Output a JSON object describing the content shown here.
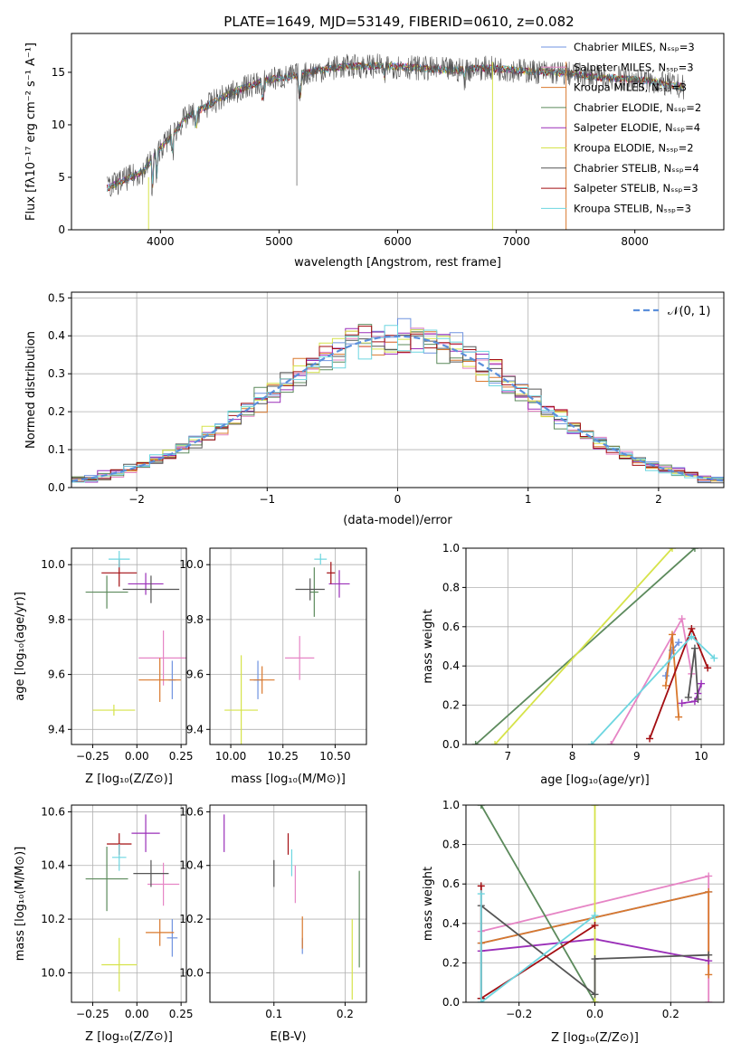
{
  "colors": {
    "chabrier_miles": "#6f93e0",
    "salpeter_miles": "#e685c5",
    "kroupa_miles": "#d9782d",
    "chabrier_elodie": "#5c8a5c",
    "salpeter_elodie": "#9a2fb8",
    "kroupa_elodie": "#d6e34a",
    "chabrier_stelib": "#555555",
    "salpeter_stelib": "#a30e12",
    "kroupa_stelib": "#6dd6e0",
    "normal_curve": "#5b8fdb",
    "grid": "#b0b0b0"
  },
  "chart_data": [
    {
      "id": "spectrum",
      "type": "line",
      "title": "PLATE=1649, MJD=53149, FIBERID=0610, z=0.082",
      "xlabel": "wavelength [Angstrom, rest frame]",
      "ylabel": "Flux [fλ10⁻¹⁷ erg cm⁻² s⁻¹ A⁻¹]",
      "xlim": [
        3250,
        8750
      ],
      "ylim": [
        0,
        18.7
      ],
      "xticks": [
        "4000",
        "5000",
        "6000",
        "7000",
        "8000"
      ],
      "yticks": [
        "0",
        "5",
        "10",
        "15"
      ],
      "grid": false,
      "legend_position": "right",
      "continuum": {
        "x": [
          3550,
          3700,
          3850,
          4000,
          4100,
          4200,
          4300,
          4500,
          4700,
          4900,
          5100,
          5300,
          5500,
          5700,
          5900,
          6100,
          6300,
          6500,
          6700,
          6900,
          7100,
          7300,
          7500,
          7700,
          7900,
          8100,
          8300,
          8400
        ],
        "y": [
          4.0,
          4.8,
          5.5,
          7.8,
          9.0,
          10.5,
          11.2,
          12.5,
          13.5,
          14.3,
          14.6,
          15.1,
          15.5,
          15.6,
          15.6,
          15.5,
          15.3,
          15.2,
          15.4,
          15.3,
          15.1,
          15.0,
          14.8,
          14.5,
          14.4,
          14.2,
          13.8,
          13.6
        ]
      },
      "series": [
        {
          "name": "Chabrier MILES, Nₛₛₚ=3",
          "color_key": "chabrier_miles"
        },
        {
          "name": "Salpeter MILES, Nₛₛₚ=3",
          "color_key": "salpeter_miles"
        },
        {
          "name": "Kroupa MILES, Nₛₛₚ=3",
          "color_key": "kroupa_miles"
        },
        {
          "name": "Chabrier ELODIE, Nₛₛₚ=2",
          "color_key": "chabrier_elodie"
        },
        {
          "name": "Salpeter ELODIE, Nₛₛₚ=4",
          "color_key": "salpeter_elodie"
        },
        {
          "name": "Kroupa ELODIE, Nₛₛₚ=2",
          "color_key": "kroupa_elodie"
        },
        {
          "name": "Chabrier STELIB, Nₛₛₚ=4",
          "color_key": "chabrier_stelib"
        },
        {
          "name": "Salpeter STELIB, Nₛₛₚ=3",
          "color_key": "salpeter_stelib"
        },
        {
          "name": "Kroupa STELIB, Nₛₛₚ=3",
          "color_key": "kroupa_stelib"
        }
      ]
    },
    {
      "id": "residuals",
      "type": "line",
      "xlabel": "(data-model)/error",
      "ylabel": "Normed distribution",
      "xlim": [
        -2.5,
        2.5
      ],
      "ylim": [
        0,
        0.515
      ],
      "xticks": [
        "−2",
        "−1",
        "0",
        "1",
        "2"
      ],
      "yticks": [
        "0.0",
        "0.1",
        "0.2",
        "0.3",
        "0.4",
        "0.5"
      ],
      "grid": true,
      "legend_position": "top-right",
      "legend": [
        "𝒩(0, 1)"
      ],
      "bin_width": 0.1,
      "bin_start": -2.5,
      "note_series": "nine step histograms, one per SSP model, scattered around the normal curve"
    },
    {
      "id": "age_vs_Z",
      "type": "scatter",
      "xlabel": "Z [log₁₀(Z/Z⊙)]",
      "ylabel": "age  [log₁₀(age/yr)]",
      "xlim": [
        -0.37,
        0.28
      ],
      "ylim": [
        9.345,
        10.06
      ],
      "xticks": [
        "−0.25",
        "0.00",
        "0.25"
      ],
      "yticks": [
        "9.4",
        "9.6",
        "9.8",
        "10.0"
      ],
      "grid": true,
      "points": [
        {
          "c": "chabrier_miles",
          "x": 0.2,
          "xerr": 0.02,
          "y": 9.58,
          "yerr": 0.07
        },
        {
          "c": "salpeter_miles",
          "x": 0.15,
          "xerr": 0.14,
          "y": 9.66,
          "yerr": 0.1
        },
        {
          "c": "kroupa_miles",
          "x": 0.13,
          "xerr": 0.12,
          "y": 9.58,
          "yerr": 0.08
        },
        {
          "c": "chabrier_elodie",
          "x": -0.17,
          "xerr": 0.12,
          "y": 9.9,
          "yerr": 0.06
        },
        {
          "c": "salpeter_elodie",
          "x": 0.05,
          "xerr": 0.1,
          "y": 9.93,
          "yerr": 0.04
        },
        {
          "c": "kroupa_elodie",
          "x": -0.13,
          "xerr": 0.12,
          "y": 9.47,
          "yerr": 0.02
        },
        {
          "c": "chabrier_stelib",
          "x": 0.08,
          "xerr": 0.16,
          "y": 9.91,
          "yerr": 0.05
        },
        {
          "c": "salpeter_stelib",
          "x": -0.1,
          "xerr": 0.1,
          "y": 9.97,
          "yerr": 0.05
        },
        {
          "c": "kroupa_stelib",
          "x": -0.1,
          "xerr": 0.06,
          "y": 10.02,
          "yerr": 0.03
        }
      ]
    },
    {
      "id": "age_vs_mass",
      "type": "scatter",
      "xlabel": "mass [log₁₀(M/M⊙)]",
      "ylabel": "",
      "xlim": [
        9.9,
        10.65
      ],
      "ylim": [
        9.345,
        10.06
      ],
      "xticks": [
        "10.00",
        "10.25",
        "10.50"
      ],
      "yticks": [
        "9.4",
        "9.6",
        "9.8",
        "10.0"
      ],
      "grid": true,
      "points": [
        {
          "c": "chabrier_miles",
          "x": 10.13,
          "xerr": 0.02,
          "y": 9.58,
          "yerr": 0.07
        },
        {
          "c": "salpeter_miles",
          "x": 10.33,
          "xerr": 0.07,
          "y": 9.66,
          "yerr": 0.08
        },
        {
          "c": "kroupa_miles",
          "x": 10.15,
          "xerr": 0.06,
          "y": 9.58,
          "yerr": 0.05
        },
        {
          "c": "chabrier_elodie",
          "x": 10.4,
          "xerr": 0.02,
          "y": 9.9,
          "yerr": 0.09
        },
        {
          "c": "salpeter_elodie",
          "x": 10.52,
          "xerr": 0.05,
          "y": 9.93,
          "yerr": 0.05
        },
        {
          "c": "kroupa_elodie",
          "x": 10.05,
          "xerr": 0.08,
          "y": 9.47,
          "yerr": 0.2
        },
        {
          "c": "chabrier_stelib",
          "x": 10.38,
          "xerr": 0.07,
          "y": 9.91,
          "yerr": 0.04
        },
        {
          "c": "salpeter_stelib",
          "x": 10.48,
          "xerr": 0.02,
          "y": 9.97,
          "yerr": 0.04
        },
        {
          "c": "kroupa_stelib",
          "x": 10.43,
          "xerr": 0.03,
          "y": 10.02,
          "yerr": 0.02
        }
      ]
    },
    {
      "id": "mass_weight_vs_age",
      "type": "line",
      "xlabel": "age  [log₁₀(age/yr)]",
      "ylabel": "mass weight",
      "xlim": [
        6.35,
        10.35
      ],
      "ylim": [
        0,
        1
      ],
      "xticks": [
        "7",
        "8",
        "9",
        "10"
      ],
      "yticks": [
        "0.0",
        "0.2",
        "0.4",
        "0.6",
        "0.8",
        "1.0"
      ],
      "grid": true,
      "series": [
        {
          "c": "chabrier_miles",
          "x": [
            9.45,
            9.55,
            9.65
          ],
          "y": [
            0.35,
            0.48,
            0.52
          ]
        },
        {
          "c": "salpeter_miles",
          "x": [
            8.6,
            9.7,
            9.85
          ],
          "y": [
            0.0,
            0.64,
            0.36
          ]
        },
        {
          "c": "kroupa_miles",
          "x": [
            9.45,
            9.55,
            9.65
          ],
          "y": [
            0.3,
            0.56,
            0.14
          ]
        },
        {
          "c": "chabrier_elodie",
          "x": [
            6.5,
            9.9
          ],
          "y": [
            0.0,
            1.0
          ]
        },
        {
          "c": "salpeter_elodie",
          "x": [
            9.7,
            9.9,
            9.95,
            10.0
          ],
          "y": [
            0.21,
            0.22,
            0.26,
            0.31
          ]
        },
        {
          "c": "kroupa_elodie",
          "x": [
            6.8,
            9.55
          ],
          "y": [
            0.0,
            1.0
          ]
        },
        {
          "c": "chabrier_stelib",
          "x": [
            9.8,
            9.9,
            9.95
          ],
          "y": [
            0.24,
            0.49,
            0.23
          ]
        },
        {
          "c": "salpeter_stelib",
          "x": [
            9.2,
            9.85,
            10.1
          ],
          "y": [
            0.03,
            0.59,
            0.39
          ]
        },
        {
          "c": "kroupa_stelib",
          "x": [
            8.3,
            9.85,
            10.2
          ],
          "y": [
            0.0,
            0.55,
            0.44
          ]
        }
      ]
    },
    {
      "id": "mass_vs_Z",
      "type": "scatter",
      "xlabel": "Z [log₁₀(Z/Z⊙)]",
      "ylabel": "mass [log₁₀(M/M⊙)]",
      "xlim": [
        -0.37,
        0.28
      ],
      "ylim": [
        9.89,
        10.625
      ],
      "xticks": [
        "−0.25",
        "0.00",
        "0.25"
      ],
      "yticks": [
        "10.0",
        "10.2",
        "10.4",
        "10.6"
      ],
      "grid": true,
      "points": [
        {
          "c": "chabrier_miles",
          "x": 0.2,
          "xerr": 0.03,
          "y": 10.13,
          "yerr": 0.07
        },
        {
          "c": "salpeter_miles",
          "x": 0.15,
          "xerr": 0.09,
          "y": 10.33,
          "yerr": 0.08
        },
        {
          "c": "kroupa_miles",
          "x": 0.13,
          "xerr": 0.08,
          "y": 10.15,
          "yerr": 0.05
        },
        {
          "c": "chabrier_elodie",
          "x": -0.17,
          "xerr": 0.12,
          "y": 10.35,
          "yerr": 0.12
        },
        {
          "c": "salpeter_elodie",
          "x": 0.05,
          "xerr": 0.08,
          "y": 10.52,
          "yerr": 0.07
        },
        {
          "c": "kroupa_elodie",
          "x": -0.1,
          "xerr": 0.1,
          "y": 10.03,
          "yerr": 0.1
        },
        {
          "c": "chabrier_stelib",
          "x": 0.08,
          "xerr": 0.1,
          "y": 10.37,
          "yerr": 0.05
        },
        {
          "c": "salpeter_stelib",
          "x": -0.1,
          "xerr": 0.07,
          "y": 10.48,
          "yerr": 0.04
        },
        {
          "c": "kroupa_stelib",
          "x": -0.1,
          "xerr": 0.04,
          "y": 10.43,
          "yerr": 0.05
        }
      ]
    },
    {
      "id": "mass_vs_ebv",
      "type": "scatter",
      "xlabel": "E(B-V)",
      "ylabel": "",
      "xlim": [
        0.01,
        0.23
      ],
      "ylim": [
        9.89,
        10.625
      ],
      "xticks": [
        "0.1",
        "0.2"
      ],
      "yticks": [
        "10.0",
        "10.2",
        "10.4",
        "10.6"
      ],
      "grid": true,
      "points": [
        {
          "c": "chabrier_miles",
          "x": 0.14,
          "y": 10.1,
          "yerr": 0.03
        },
        {
          "c": "salpeter_miles",
          "x": 0.13,
          "y": 10.33,
          "yerr": 0.07
        },
        {
          "c": "kroupa_miles",
          "x": 0.14,
          "y": 10.15,
          "yerr": 0.06
        },
        {
          "c": "chabrier_elodie",
          "x": 0.22,
          "y": 10.2,
          "yerr": 0.18
        },
        {
          "c": "salpeter_elodie",
          "x": 0.03,
          "y": 10.52,
          "yerr": 0.07
        },
        {
          "c": "kroupa_elodie",
          "x": 0.21,
          "y": 10.05,
          "yerr": 0.15
        },
        {
          "c": "chabrier_stelib",
          "x": 0.1,
          "y": 10.37,
          "yerr": 0.05
        },
        {
          "c": "salpeter_stelib",
          "x": 0.12,
          "y": 10.48,
          "yerr": 0.04
        },
        {
          "c": "kroupa_stelib",
          "x": 0.125,
          "y": 10.41,
          "yerr": 0.05
        }
      ]
    },
    {
      "id": "mass_weight_vs_Z",
      "type": "line",
      "xlabel": "Z [log₁₀(Z/Z⊙)]",
      "ylabel": "mass weight",
      "xlim": [
        -0.34,
        0.34
      ],
      "ylim": [
        0,
        1
      ],
      "xticks": [
        "−0.2",
        "0.0",
        "0.2"
      ],
      "yticks": [
        "0.0",
        "0.2",
        "0.4",
        "0.6",
        "0.8",
        "1.0"
      ],
      "grid": true,
      "series": [
        {
          "c": "chabrier_miles",
          "x": [
            -0.3,
            0.3
          ],
          "y": [
            0.3,
            0.56
          ]
        },
        {
          "c": "salpeter_miles",
          "x": [
            -0.3,
            0.3,
            0.3
          ],
          "y": [
            0.36,
            0.64,
            0.0
          ]
        },
        {
          "c": "kroupa_miles",
          "x": [
            -0.3,
            0.3,
            0.3
          ],
          "y": [
            0.3,
            0.56,
            0.14
          ]
        },
        {
          "c": "chabrier_elodie",
          "x": [
            -0.3,
            0.0
          ],
          "y": [
            1.0,
            0.0
          ]
        },
        {
          "c": "salpeter_elodie",
          "x": [
            -0.3,
            0.0,
            0.3
          ],
          "y": [
            0.26,
            0.32,
            0.21
          ]
        },
        {
          "c": "kroupa_elodie",
          "x": [
            0.0,
            0.0
          ],
          "y": [
            0.0,
            1.0
          ]
        },
        {
          "c": "chabrier_stelib",
          "x": [
            -0.3,
            -0.3,
            0.0,
            0.0,
            0.3
          ],
          "y": [
            0.02,
            0.49,
            0.04,
            0.22,
            0.24
          ]
        },
        {
          "c": "salpeter_stelib",
          "x": [
            -0.3,
            -0.3,
            0.0
          ],
          "y": [
            0.59,
            0.02,
            0.39
          ]
        },
        {
          "c": "kroupa_stelib",
          "x": [
            -0.3,
            -0.3,
            0.0
          ],
          "y": [
            0.55,
            0.0,
            0.44
          ]
        }
      ]
    }
  ]
}
